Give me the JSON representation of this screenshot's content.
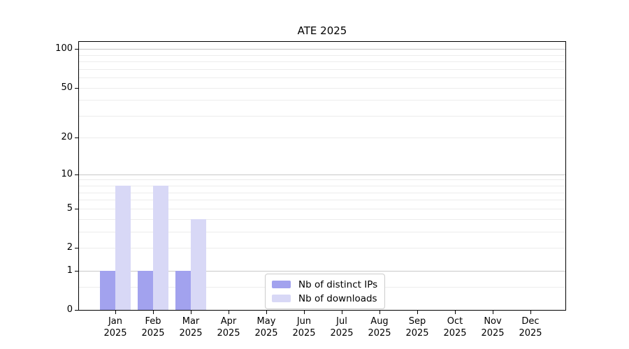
{
  "title": "ATE 2025",
  "chart_data": {
    "type": "bar",
    "title": "ATE 2025",
    "categories": [
      "Jan 2025",
      "Feb 2025",
      "Mar 2025",
      "Apr 2025",
      "May 2025",
      "Jun 2025",
      "Jul 2025",
      "Aug 2025",
      "Sep 2025",
      "Oct 2025",
      "Nov 2025",
      "Dec 2025"
    ],
    "series": [
      {
        "name": "Nb of distinct IPs",
        "color": "#a2a2ee",
        "values": [
          1,
          1,
          1,
          0,
          0,
          0,
          0,
          0,
          0,
          0,
          0,
          0
        ]
      },
      {
        "name": "Nb of downloads",
        "color": "#d8d8f6",
        "values": [
          8,
          8,
          4,
          0,
          0,
          0,
          0,
          0,
          0,
          0,
          0,
          0
        ]
      }
    ],
    "xlabel": "",
    "ylabel": "",
    "y_scale": "log1p",
    "ylim": [
      0,
      118
    ],
    "y_ticks": [
      0,
      1,
      2,
      5,
      10,
      20,
      50,
      100
    ],
    "y_major_gridlines": [
      1,
      10,
      100
    ],
    "y_minor_gridlines": [
      0.5,
      2,
      3,
      4,
      5,
      6,
      7,
      8,
      9,
      20,
      30,
      40,
      50,
      60,
      70,
      80,
      90
    ],
    "grid": true,
    "legend_position": "lower center",
    "legend_entries": [
      "Nb of distinct IPs",
      "Nb of downloads"
    ],
    "colors": {
      "ips_bar": "#a2a2ee",
      "downloads_bar": "#d8d8f6",
      "major_grid": "#c8c8c8",
      "minor_grid": "#ececec",
      "spine": "#000000",
      "legend_border": "#cccccc",
      "background": "#ffffff"
    }
  }
}
